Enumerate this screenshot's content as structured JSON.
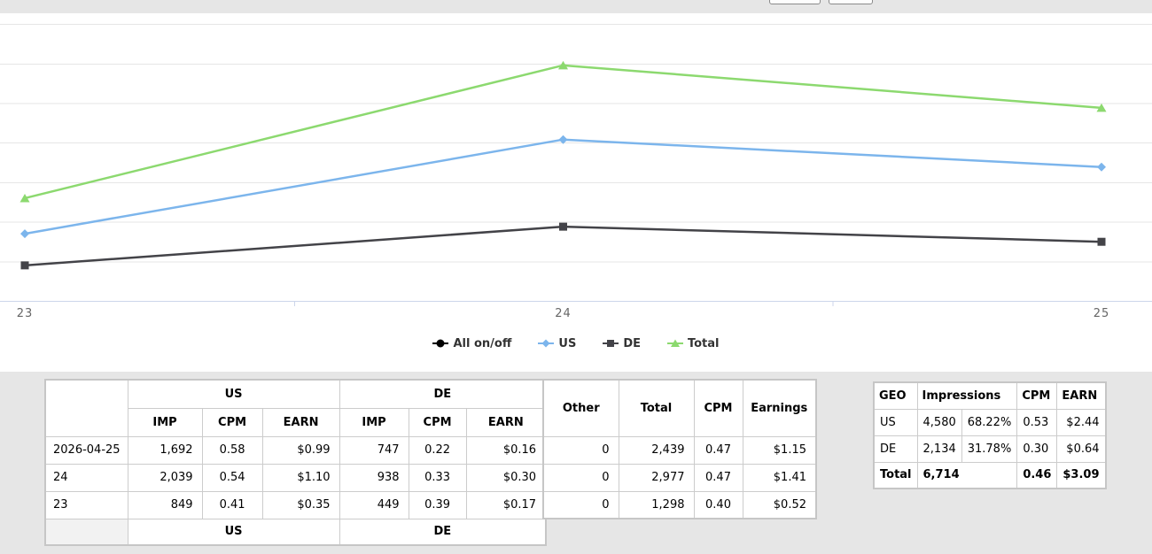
{
  "toolbar": {
    "buttons": [
      {
        "label": ""
      },
      {
        "label": ""
      }
    ]
  },
  "chart_data": {
    "type": "line",
    "x": [
      "23",
      "24",
      "25"
    ],
    "series": [
      {
        "name": "All on/off",
        "color": "#000000",
        "marker": "circle",
        "legend_only": true,
        "values": []
      },
      {
        "name": "US",
        "color": "#7cb5ec",
        "marker": "diamond",
        "legend_only": false,
        "values": [
          849,
          2039,
          1692
        ]
      },
      {
        "name": "DE",
        "color": "#434348",
        "marker": "square",
        "legend_only": false,
        "values": [
          449,
          938,
          747
        ]
      },
      {
        "name": "Total",
        "color": "#8cd96f",
        "marker": "triangle",
        "legend_only": false,
        "values": [
          1298,
          2977,
          2439
        ]
      }
    ],
    "title": "",
    "xlabel": "",
    "ylabel": "",
    "ylim": [
      0,
      3635
    ],
    "grid_step": 500,
    "grid_on": true,
    "legend_position": "bottom",
    "grid_color": "#e6e6e6",
    "axis_color": "#ccd6eb",
    "label_color": "#666666"
  },
  "tables": {
    "daily": {
      "group_headers": [
        "US",
        "DE"
      ],
      "sub_headers": [
        "IMP",
        "CPM",
        "EARN",
        "IMP",
        "CPM",
        "EARN"
      ],
      "rows": [
        [
          "2026-04-25",
          "1,692",
          "0.58",
          "$0.99",
          "747",
          "0.22",
          "$0.16"
        ],
        [
          "24",
          "2,039",
          "0.54",
          "$1.10",
          "938",
          "0.33",
          "$0.30"
        ],
        [
          "23",
          "849",
          "0.41",
          "$0.35",
          "449",
          "0.39",
          "$0.17"
        ]
      ],
      "footer": [
        "US",
        "DE"
      ]
    },
    "totals": {
      "headers": [
        "Other",
        "Total",
        "CPM",
        "Earnings"
      ],
      "rows": [
        [
          "0",
          "2,439",
          "0.47",
          "$1.15"
        ],
        [
          "0",
          "2,977",
          "0.47",
          "$1.41"
        ],
        [
          "0",
          "1,298",
          "0.40",
          "$0.52"
        ]
      ]
    },
    "geo": {
      "headers": [
        "GEO",
        "Impressions",
        "CPM",
        "EARN"
      ],
      "rows": [
        [
          "US",
          "4,580",
          "68.22%",
          "0.53",
          "$2.44"
        ],
        [
          "DE",
          "2,134",
          "31.78%",
          "0.30",
          "$0.64"
        ]
      ],
      "total_row": [
        "Total",
        "6,714",
        "0.46",
        "$3.09"
      ]
    }
  }
}
